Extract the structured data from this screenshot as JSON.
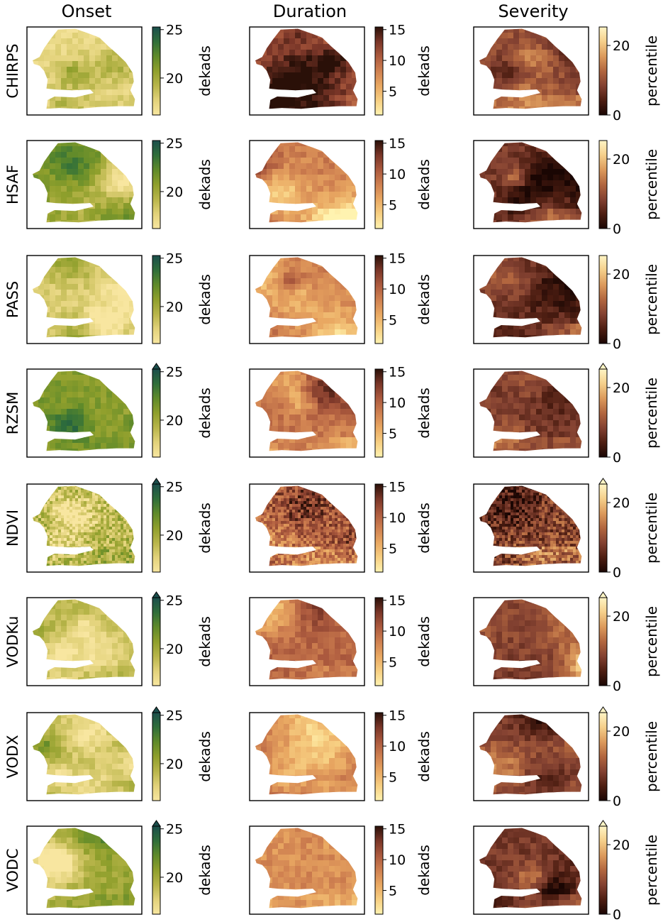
{
  "columns": [
    {
      "key": "onset",
      "title": "Onset",
      "unit": "dekads",
      "ticks": [
        "20",
        "25"
      ],
      "cmap": "onset"
    },
    {
      "key": "duration",
      "title": "Duration",
      "unit": "dekads",
      "ticks": [
        "5",
        "10",
        "15"
      ],
      "cmap": "duration"
    },
    {
      "key": "severity",
      "title": "Severity",
      "unit": "percentile",
      "ticks": [
        "0",
        "20"
      ],
      "cmap": "severity"
    }
  ],
  "rows": [
    "CHIRPS",
    "HSAF",
    "PASS",
    "RZSM",
    "NDVI",
    "VODKu",
    "VODX",
    "VODC"
  ],
  "colorbar_extend_max": {
    "onset": [
      false,
      false,
      false,
      true,
      true,
      true,
      true,
      true
    ],
    "duration": [
      false,
      false,
      false,
      false,
      false,
      false,
      false,
      false
    ],
    "severity": [
      false,
      false,
      false,
      true,
      true,
      true,
      true,
      true
    ]
  },
  "colormaps": {
    "onset": [
      "#f8e6a0",
      "#e2d27a",
      "#b8b54a",
      "#8f9f2c",
      "#5f8a2a",
      "#2f6e3a",
      "#1a4e4c"
    ],
    "duration": [
      "#fff3b0",
      "#f7cf82",
      "#e9a862",
      "#cf8050",
      "#ac5a3e",
      "#7a3628",
      "#2a1008"
    ],
    "severity": [
      "#1a0603",
      "#4e1e12",
      "#834131",
      "#b2663f",
      "#dc9a5c",
      "#f5cf8a",
      "#fff5c5"
    ]
  },
  "chart_data": [
    {
      "type": "heatmap",
      "title": "Onset",
      "colorbar_label": "dekads",
      "colorbar_ticks": [
        20,
        25
      ],
      "colorbar_range": [
        16,
        25
      ],
      "panels": [
        {
          "name": "CHIRPS",
          "level": 0.1
        },
        {
          "name": "HSAF",
          "level": 0.55
        },
        {
          "name": "PASS",
          "level": 0.15
        },
        {
          "name": "RZSM",
          "level": 0.55
        },
        {
          "name": "NDVI",
          "level": 0.35
        },
        {
          "name": "VODKu",
          "level": 0.3
        },
        {
          "name": "VODX",
          "level": 0.35
        },
        {
          "name": "VODC",
          "level": 0.45
        }
      ]
    },
    {
      "type": "heatmap",
      "title": "Duration",
      "colorbar_label": "dekads",
      "colorbar_ticks": [
        5,
        10,
        15
      ],
      "colorbar_range": [
        1,
        15
      ],
      "panels": [
        {
          "name": "CHIRPS",
          "level": 0.7
        },
        {
          "name": "HSAF",
          "level": 0.5
        },
        {
          "name": "PASS",
          "level": 0.5
        },
        {
          "name": "RZSM",
          "level": 0.55
        },
        {
          "name": "NDVI",
          "level": 0.55
        },
        {
          "name": "VODKu",
          "level": 0.6
        },
        {
          "name": "VODX",
          "level": 0.55
        },
        {
          "name": "VODC",
          "level": 0.45
        }
      ]
    },
    {
      "type": "heatmap",
      "title": "Severity",
      "colorbar_label": "percentile",
      "colorbar_ticks": [
        0,
        20
      ],
      "colorbar_range": [
        0,
        25
      ],
      "panels": [
        {
          "name": "CHIRPS",
          "level": 0.4
        },
        {
          "name": "HSAF",
          "level": 0.3
        },
        {
          "name": "PASS",
          "level": 0.2
        },
        {
          "name": "RZSM",
          "level": 0.3
        },
        {
          "name": "NDVI",
          "level": 0.3
        },
        {
          "name": "VODKu",
          "level": 0.35
        },
        {
          "name": "VODX",
          "level": 0.35
        },
        {
          "name": "VODC",
          "level": 0.3
        }
      ]
    }
  ]
}
